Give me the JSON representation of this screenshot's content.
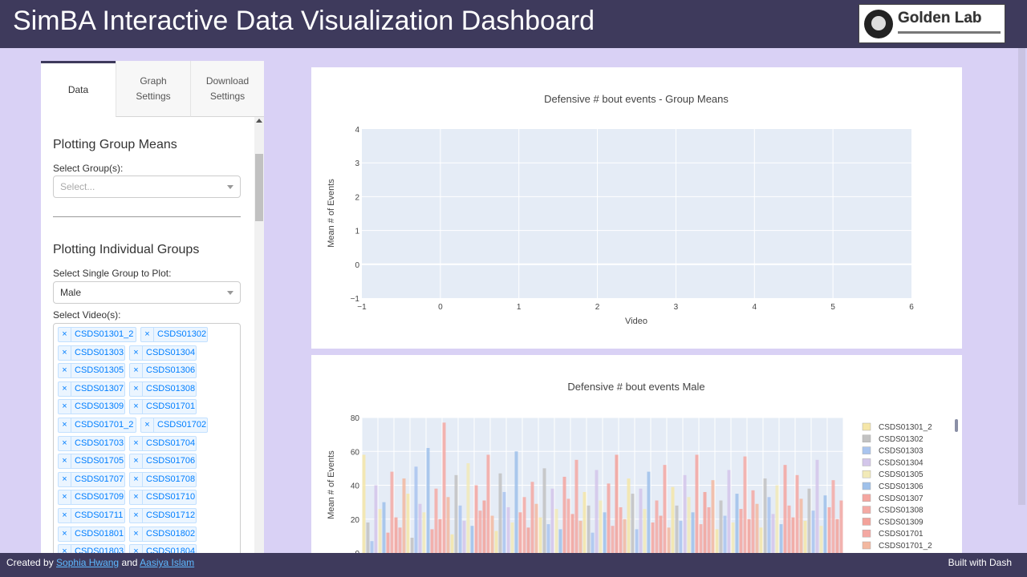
{
  "header": {
    "title": "SimBA Interactive Data Visualization Dashboard",
    "logo_text": "Golden Lab"
  },
  "tabs": [
    {
      "label": "Data",
      "active": true
    },
    {
      "label": "Graph Settings",
      "active": false
    },
    {
      "label": "Download Settings",
      "active": false
    }
  ],
  "group_means": {
    "title": "Plotting Group Means",
    "select_label": "Select Group(s):",
    "placeholder": "Select..."
  },
  "individual_groups": {
    "title": "Plotting Individual Groups",
    "single_label": "Select Single Group to Plot:",
    "single_value": "Male",
    "videos_label": "Select Video(s):",
    "videos": [
      [
        "CSDS01301_2",
        "CSDS01302"
      ],
      [
        "CSDS01303",
        "CSDS01304"
      ],
      [
        "CSDS01305",
        "CSDS01306"
      ],
      [
        "CSDS01307",
        "CSDS01308"
      ],
      [
        "CSDS01309",
        "CSDS01701"
      ],
      [
        "CSDS01701_2",
        "CSDS01702"
      ],
      [
        "CSDS01703",
        "CSDS01704"
      ],
      [
        "CSDS01705",
        "CSDS01706"
      ],
      [
        "CSDS01707",
        "CSDS01708"
      ],
      [
        "CSDS01709",
        "CSDS01710"
      ],
      [
        "CSDS01711",
        "CSDS01712"
      ],
      [
        "CSDS01801",
        "CSDS01802"
      ],
      [
        "CSDS01803",
        "CSDS01804"
      ]
    ]
  },
  "chart_data": [
    {
      "type": "scatter",
      "title": "Defensive # bout events - Group Means",
      "xlabel": "Video",
      "ylabel": "Mean # of Events",
      "xlim": [
        -1,
        6
      ],
      "ylim": [
        -1,
        4
      ],
      "x_ticks": [
        "−1",
        "0",
        "1",
        "2",
        "3",
        "4",
        "5",
        "6"
      ],
      "y_ticks": [
        "−1",
        "0",
        "1",
        "2",
        "3",
        "4"
      ],
      "series": [],
      "grid": true,
      "plot_bg": "#e5ecf6"
    },
    {
      "type": "bar",
      "title": "Defensive # bout events Male",
      "xlabel": "",
      "ylabel": "Mean # of Events",
      "ylim": [
        0,
        80
      ],
      "y_ticks": [
        "0",
        "20",
        "40",
        "60",
        "80"
      ],
      "legend_position": "right",
      "series_names": [
        "CSDS01301_2",
        "CSDS01302",
        "CSDS01303",
        "CSDS01304",
        "CSDS01305",
        "CSDS01306",
        "CSDS01307",
        "CSDS01308",
        "CSDS01309",
        "CSDS01701",
        "CSDS01701_2"
      ],
      "series_colors": [
        "#f5e6a8",
        "#c2c2c2",
        "#a9c4ee",
        "#d3c6ea",
        "#f2eab8",
        "#9fc1ea",
        "#f4a6a0",
        "#f4aaa4",
        "#f3a29a",
        "#f4a8a2",
        "#f3b8a0"
      ],
      "values": [
        58,
        18,
        7,
        40,
        26,
        30,
        12,
        48,
        21,
        15,
        44,
        35,
        9,
        51,
        29,
        24,
        62,
        14,
        38,
        20,
        77,
        33,
        11,
        46,
        28,
        19,
        53,
        16,
        40,
        25,
        31,
        58,
        22,
        13,
        47,
        36,
        27,
        18,
        60,
        24,
        33,
        15,
        42,
        29,
        21,
        50,
        17,
        38,
        26,
        14,
        45,
        32,
        23,
        55,
        19,
        36,
        28,
        12,
        49,
        31,
        24,
        41,
        16,
        58,
        27,
        20,
        44,
        35,
        14,
        38,
        26,
        48,
        18,
        31,
        22,
        52,
        15,
        39,
        28,
        19,
        46,
        33,
        24,
        58,
        17,
        36,
        27,
        43,
        14,
        31,
        22,
        49,
        18,
        35,
        26,
        57,
        20,
        37,
        29,
        15,
        44,
        33,
        23,
        40,
        17,
        52,
        28,
        21,
        46,
        32,
        19,
        38,
        25,
        55,
        16,
        34,
        27,
        43,
        20,
        31
      ]
    }
  ],
  "footer": {
    "created_by": "Created by",
    "author1": "Sophia Hwang",
    "and": "and",
    "author2": "Aasiya Islam",
    "built_with": "Built with Dash"
  }
}
